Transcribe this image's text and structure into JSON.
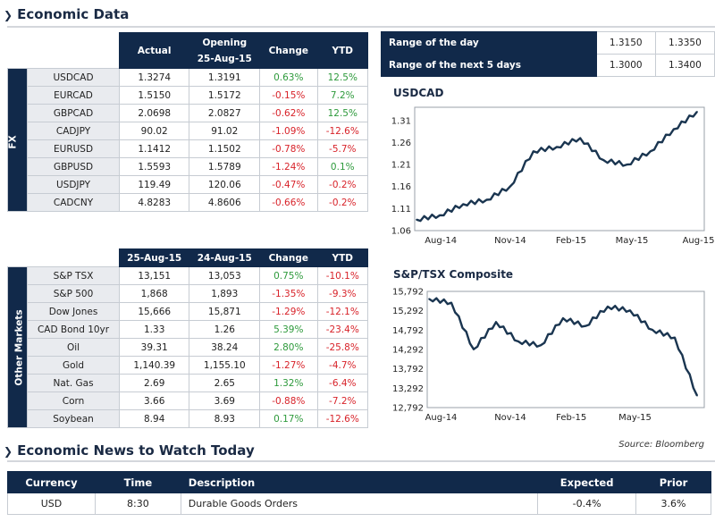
{
  "economic_data": {
    "title": "Economic Data",
    "fx": {
      "band_label": "FX",
      "headers": [
        "Actual",
        "Opening\n25-Aug-15",
        "Change",
        "YTD"
      ],
      "header_actual": "Actual",
      "header_opening_1": "Opening",
      "header_opening_2": "25-Aug-15",
      "header_change": "Change",
      "header_ytd": "YTD",
      "rows": [
        {
          "name": "USDCAD",
          "actual": "1.3274",
          "opening": "1.3191",
          "change": "0.63%",
          "ytd": "12.5%",
          "chg_sign": "pos",
          "ytd_sign": "pos"
        },
        {
          "name": "EURCAD",
          "actual": "1.5150",
          "opening": "1.5172",
          "change": "-0.15%",
          "ytd": "7.2%",
          "chg_sign": "neg",
          "ytd_sign": "pos"
        },
        {
          "name": "GBPCAD",
          "actual": "2.0698",
          "opening": "2.0827",
          "change": "-0.62%",
          "ytd": "12.5%",
          "chg_sign": "neg",
          "ytd_sign": "pos"
        },
        {
          "name": "CADJPY",
          "actual": "90.02",
          "opening": "91.02",
          "change": "-1.09%",
          "ytd": "-12.6%",
          "chg_sign": "neg",
          "ytd_sign": "neg"
        },
        {
          "name": "EURUSD",
          "actual": "1.1412",
          "opening": "1.1502",
          "change": "-0.78%",
          "ytd": "-5.7%",
          "chg_sign": "neg",
          "ytd_sign": "neg"
        },
        {
          "name": "GBPUSD",
          "actual": "1.5593",
          "opening": "1.5789",
          "change": "-1.24%",
          "ytd": "0.1%",
          "chg_sign": "neg",
          "ytd_sign": "pos"
        },
        {
          "name": "USDJPY",
          "actual": "119.49",
          "opening": "120.06",
          "change": "-0.47%",
          "ytd": "-0.2%",
          "chg_sign": "neg",
          "ytd_sign": "neg"
        },
        {
          "name": "CADCNY",
          "actual": "4.8283",
          "opening": "4.8606",
          "change": "-0.66%",
          "ytd": "-0.2%",
          "chg_sign": "neg",
          "ytd_sign": "neg"
        }
      ]
    },
    "range": {
      "rows": [
        {
          "label": "Range of the day",
          "low": "1.3150",
          "high": "1.3350"
        },
        {
          "label": "Range of the next 5 days",
          "low": "1.3000",
          "high": "1.3400"
        }
      ]
    },
    "markets": {
      "band_label": "Other Markets",
      "header_d1": "25-Aug-15",
      "header_d2": "24-Aug-15",
      "header_change": "Change",
      "header_ytd": "YTD",
      "rows": [
        {
          "name": "S&P TSX",
          "d1": "13,151",
          "d2": "13,053",
          "change": "0.75%",
          "ytd": "-10.1%",
          "chg_sign": "pos",
          "ytd_sign": "neg"
        },
        {
          "name": "S&P 500",
          "d1": "1,868",
          "d2": "1,893",
          "change": "-1.35%",
          "ytd": "-9.3%",
          "chg_sign": "neg",
          "ytd_sign": "neg"
        },
        {
          "name": "Dow Jones",
          "d1": "15,666",
          "d2": "15,871",
          "change": "-1.29%",
          "ytd": "-12.1%",
          "chg_sign": "neg",
          "ytd_sign": "neg"
        },
        {
          "name": "CAD Bond 10yr",
          "d1": "1.33",
          "d2": "1.26",
          "change": "5.39%",
          "ytd": "-23.4%",
          "chg_sign": "pos",
          "ytd_sign": "neg"
        },
        {
          "name": "Oil",
          "d1": "39.31",
          "d2": "38.24",
          "change": "2.80%",
          "ytd": "-25.8%",
          "chg_sign": "pos",
          "ytd_sign": "neg"
        },
        {
          "name": "Gold",
          "d1": "1,140.39",
          "d2": "1,155.10",
          "change": "-1.27%",
          "ytd": "-4.7%",
          "chg_sign": "neg",
          "ytd_sign": "neg"
        },
        {
          "name": "Nat. Gas",
          "d1": "2.69",
          "d2": "2.65",
          "change": "1.32%",
          "ytd": "-6.4%",
          "chg_sign": "pos",
          "ytd_sign": "neg"
        },
        {
          "name": "Corn",
          "d1": "3.66",
          "d2": "3.69",
          "change": "-0.88%",
          "ytd": "-7.2%",
          "chg_sign": "neg",
          "ytd_sign": "neg"
        },
        {
          "name": "Soybean",
          "d1": "8.94",
          "d2": "8.93",
          "change": "0.17%",
          "ytd": "-12.6%",
          "chg_sign": "pos",
          "ytd_sign": "neg"
        }
      ]
    },
    "source": "Source: Bloomberg"
  },
  "news": {
    "title": "Economic News to Watch Today",
    "header_currency": "Currency",
    "header_time": "Time",
    "header_description": "Description",
    "header_expected": "Expected",
    "header_prior": "Prior",
    "rows": [
      {
        "currency": "USD",
        "time": "8:30",
        "description": "Durable Goods Orders",
        "expected": "-0.4%",
        "prior": "3.6%"
      }
    ]
  },
  "colors": {
    "navy": "#11294a",
    "positive": "#2e9a3c",
    "negative": "#d8232a",
    "line": "#1a3550"
  },
  "chart_data": [
    {
      "type": "line",
      "title": "USDCAD",
      "x_ticks": [
        "Aug-14",
        "Nov-14",
        "Feb-15",
        "May-15",
        "Aug-15"
      ],
      "y_ticks": [
        "1.06",
        "1.11",
        "1.16",
        "1.21",
        "1.26",
        "1.31"
      ],
      "ylim": [
        1.06,
        1.34
      ],
      "x": [
        "2014-08",
        "2014-09",
        "2014-10",
        "2014-11",
        "2014-12",
        "2015-01",
        "2015-02",
        "2015-03",
        "2015-04",
        "2015-05",
        "2015-06",
        "2015-07",
        "2015-08"
      ],
      "values": [
        1.085,
        1.095,
        1.12,
        1.13,
        1.16,
        1.24,
        1.25,
        1.27,
        1.22,
        1.21,
        1.24,
        1.29,
        1.33
      ]
    },
    {
      "type": "line",
      "title": "S&P/TSX Composite",
      "x_ticks": [
        "Aug-14",
        "Nov-14",
        "Feb-15",
        "May-15"
      ],
      "y_ticks": [
        "12,792",
        "13,292",
        "13,792",
        "14,292",
        "14,792",
        "15,292",
        "15,792"
      ],
      "ylim": [
        12792,
        15792
      ],
      "x": [
        "2014-08",
        "2014-09",
        "2014-10",
        "2014-11",
        "2014-12",
        "2015-01",
        "2015-02",
        "2015-03",
        "2015-04",
        "2015-05",
        "2015-06",
        "2015-07",
        "2015-08"
      ],
      "values": [
        15600,
        15500,
        14300,
        15000,
        14500,
        14400,
        15100,
        14900,
        15400,
        15300,
        14800,
        14600,
        13100
      ]
    }
  ]
}
